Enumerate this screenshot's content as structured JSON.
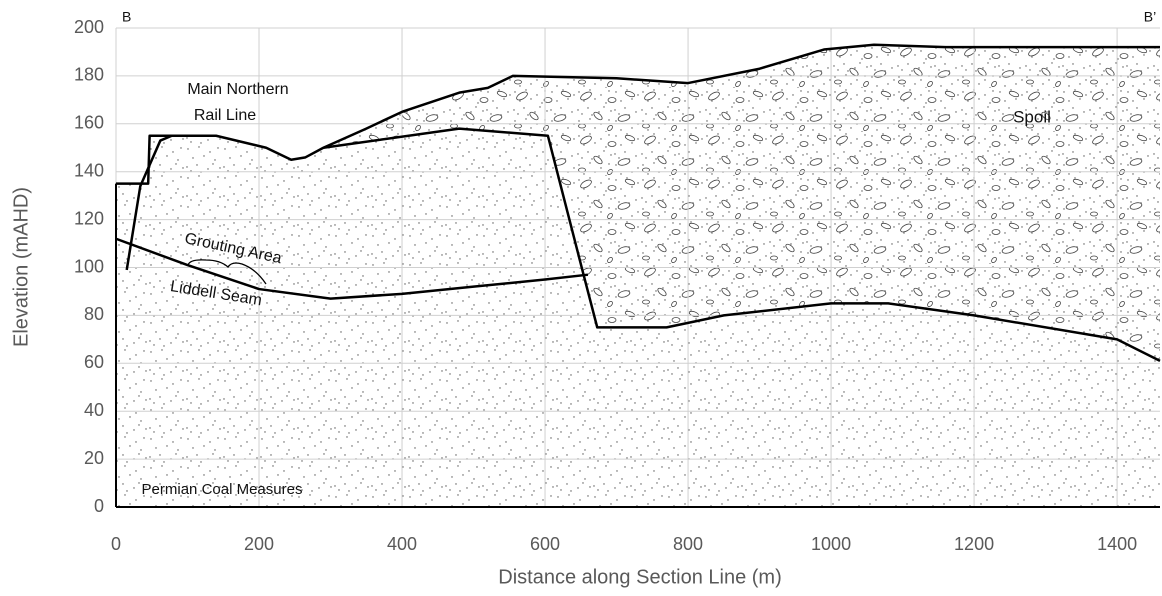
{
  "chart_data": {
    "type": "line",
    "xlabel": "Distance along Section Line (m)",
    "ylabel": "Elevation (mAHD)",
    "xlim": [
      0,
      1460
    ],
    "ylim": [
      0,
      200
    ],
    "xticks": [
      0,
      200,
      400,
      600,
      800,
      1000,
      1200,
      1400
    ],
    "yticks": [
      0,
      20,
      40,
      60,
      80,
      100,
      120,
      140,
      160,
      180,
      200
    ],
    "grid": true,
    "series": [
      {
        "color": "#000000",
        "x": [
          0,
          45,
          47,
          140,
          210,
          245,
          265,
          290,
          350,
          400,
          480,
          520,
          555,
          700,
          800,
          900,
          990,
          1060,
          1160,
          1460
        ],
        "values": [
          135,
          135,
          155,
          155,
          150,
          145,
          146,
          150,
          158,
          165,
          173,
          175,
          180,
          179,
          177,
          183,
          191,
          193,
          192,
          192
        ]
      },
      {
        "color": "#000000",
        "x": [
          15,
          34,
          62,
          78
        ],
        "values": [
          99,
          134,
          153,
          155
        ]
      },
      {
        "color": "#000000",
        "x": [
          290,
          480,
          604,
          653,
          673,
          770,
          850,
          1000,
          1080,
          1200,
          1400,
          1460
        ],
        "values": [
          150,
          158,
          155,
          98,
          75,
          75,
          80,
          85,
          85,
          80,
          70,
          61
        ]
      },
      {
        "color": "#000000",
        "x": [
          0,
          100,
          200,
          300,
          400,
          500,
          600,
          660
        ],
        "values": [
          112,
          101,
          91,
          87,
          89,
          92,
          95,
          97
        ]
      }
    ],
    "annotations": [
      "B",
      "B’",
      "Main Northern",
      "Rail Line",
      "Spoil",
      "Grouting Area",
      "Liddell Seam",
      "Permian Coal Measures"
    ]
  }
}
